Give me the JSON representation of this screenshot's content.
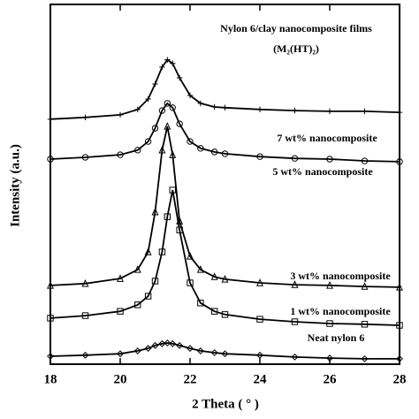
{
  "chart_data": {
    "type": "line",
    "title": "Nylon 6/clay nanocomposite films",
    "subtitle": "(M₂(HT)₂)",
    "xlabel": "2 Theta ( ° )",
    "ylabel": "Intensity (a.u.)",
    "x": [
      18,
      19,
      20,
      20.5,
      20.8,
      21,
      21.2,
      21.35,
      21.5,
      21.7,
      22,
      22.3,
      22.7,
      23,
      24,
      25,
      26,
      27,
      28
    ],
    "xlim": [
      18,
      28
    ],
    "xticks": [
      18,
      20,
      22,
      24,
      26,
      28
    ],
    "ylim": [
      0,
      100
    ],
    "series": [
      {
        "name": "7 wt% nanocomposite",
        "color": "#000000",
        "marker": "plus",
        "values": [
          68.1,
          68.6,
          69.3,
          70.8,
          73.7,
          77.9,
          82.6,
          84.6,
          83.6,
          79.6,
          74.7,
          72.5,
          71.5,
          71.3,
          70.8,
          70.5,
          70.3,
          70.3,
          70.0
        ]
      },
      {
        "name": "5 wt% nanocomposite",
        "color": "#000000",
        "marker": "circle",
        "values": [
          57.0,
          57.5,
          58.2,
          59.5,
          61.9,
          65.6,
          70.5,
          72.5,
          71.3,
          66.8,
          61.9,
          60.0,
          59.0,
          58.5,
          57.7,
          57.2,
          57.0,
          56.5,
          56.3
        ]
      },
      {
        "name": "3 wt% nanocomposite",
        "color": "#000000",
        "marker": "triangle",
        "values": [
          21.9,
          22.4,
          23.8,
          26.3,
          31.2,
          42.3,
          59.5,
          66.1,
          58.2,
          39.8,
          30.0,
          26.3,
          24.3,
          23.6,
          22.6,
          22.1,
          21.9,
          21.6,
          21.4
        ]
      },
      {
        "name": "1 wt% nanocomposite",
        "color": "#000000",
        "marker": "square",
        "values": [
          12.8,
          13.5,
          14.7,
          16.5,
          18.9,
          23.1,
          31.2,
          41.0,
          48.4,
          37.3,
          22.6,
          17.0,
          14.7,
          13.8,
          12.5,
          11.8,
          11.3,
          11.1,
          10.8
        ]
      },
      {
        "name": "Neat nylon 6",
        "color": "#000000",
        "marker": "diamond",
        "values": [
          2.2,
          2.5,
          2.9,
          3.7,
          4.4,
          5.2,
          5.7,
          5.9,
          5.7,
          5.2,
          4.4,
          3.7,
          3.2,
          2.9,
          2.5,
          2.0,
          1.7,
          1.5,
          1.5
        ]
      }
    ]
  }
}
